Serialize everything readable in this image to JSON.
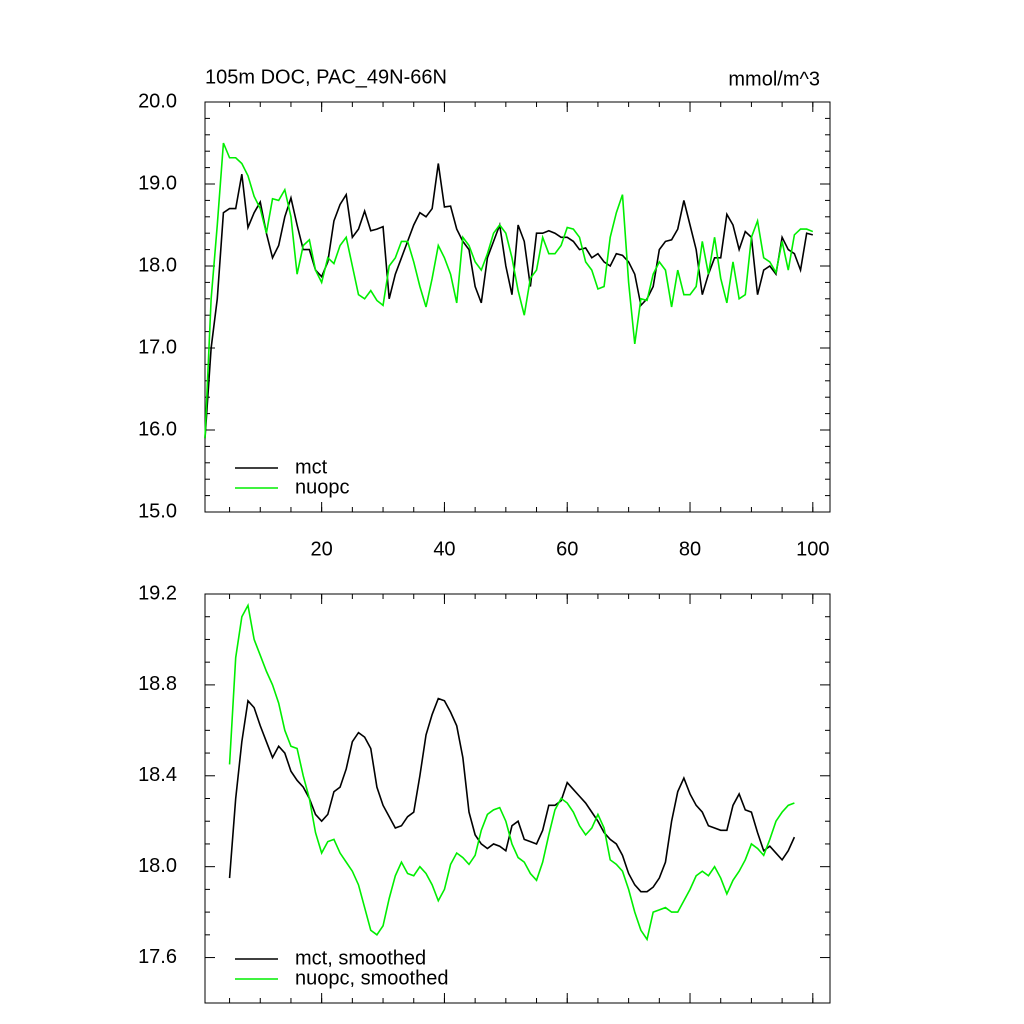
{
  "chart_data": [
    {
      "type": "line",
      "title": "105m DOC, PAC_49N-66N",
      "unit": "mmol/m^3",
      "x": [
        1,
        2,
        3,
        4,
        5,
        6,
        7,
        8,
        9,
        10,
        11,
        12,
        13,
        14,
        15,
        16,
        17,
        18,
        19,
        20,
        21,
        22,
        23,
        24,
        25,
        26,
        27,
        28,
        29,
        30,
        31,
        32,
        33,
        34,
        35,
        36,
        37,
        38,
        39,
        40,
        41,
        42,
        43,
        44,
        45,
        46,
        47,
        48,
        49,
        50,
        51,
        52,
        53,
        54,
        55,
        56,
        57,
        58,
        59,
        60,
        61,
        62,
        63,
        64,
        65,
        66,
        67,
        68,
        69,
        70,
        71,
        72,
        73,
        74,
        75,
        76,
        77,
        78,
        79,
        80,
        81,
        82,
        83,
        84,
        85,
        86,
        87,
        88,
        89,
        90,
        91,
        92,
        93,
        94,
        95,
        96,
        97,
        98,
        99,
        100
      ],
      "series": [
        {
          "name": "mct",
          "color": "#000000",
          "values": [
            15.9,
            17.0,
            17.6,
            18.65,
            18.7,
            18.7,
            19.12,
            18.47,
            18.65,
            18.78,
            18.4,
            18.1,
            18.25,
            18.6,
            18.83,
            18.5,
            18.2,
            18.2,
            17.95,
            17.87,
            18.05,
            18.55,
            18.75,
            18.87,
            18.35,
            18.45,
            18.67,
            18.43,
            18.45,
            18.48,
            17.6,
            17.9,
            18.1,
            18.3,
            18.5,
            18.65,
            18.6,
            18.7,
            19.25,
            18.72,
            18.73,
            18.45,
            18.3,
            18.2,
            17.75,
            17.55,
            18.1,
            18.3,
            18.5,
            18.0,
            17.65,
            18.5,
            18.3,
            17.75,
            18.4,
            18.4,
            18.43,
            18.4,
            18.35,
            18.35,
            18.3,
            18.2,
            18.22,
            18.1,
            18.15,
            18.05,
            18.0,
            18.15,
            18.13,
            18.05,
            17.9,
            17.52,
            17.6,
            17.75,
            18.2,
            18.3,
            18.32,
            18.45,
            18.8,
            18.5,
            18.2,
            17.65,
            17.9,
            18.1,
            18.1,
            18.63,
            18.5,
            18.2,
            18.42,
            18.35,
            17.65,
            17.95,
            18.0,
            17.9,
            18.35,
            18.2,
            18.15,
            17.95,
            18.4,
            18.38
          ]
        },
        {
          "name": "nuopc",
          "color": "#00ee00",
          "values": [
            15.9,
            17.6,
            18.5,
            19.5,
            19.32,
            19.32,
            19.25,
            19.1,
            18.85,
            18.7,
            18.4,
            18.82,
            18.8,
            18.93,
            18.6,
            17.9,
            18.25,
            18.32,
            17.95,
            17.8,
            18.1,
            18.03,
            18.25,
            18.35,
            18.0,
            17.65,
            17.6,
            17.7,
            17.58,
            17.52,
            18.0,
            18.1,
            18.3,
            18.3,
            18.05,
            17.75,
            17.5,
            17.85,
            18.25,
            18.1,
            17.9,
            17.55,
            18.35,
            18.25,
            18.05,
            17.95,
            18.15,
            18.4,
            18.5,
            18.4,
            18.1,
            17.7,
            17.4,
            17.85,
            17.95,
            18.35,
            18.15,
            18.15,
            18.25,
            18.47,
            18.45,
            18.35,
            18.05,
            17.95,
            17.72,
            17.75,
            18.35,
            18.65,
            18.87,
            17.8,
            17.05,
            17.6,
            17.58,
            17.9,
            18.05,
            17.95,
            17.5,
            17.95,
            17.65,
            17.65,
            17.75,
            18.3,
            17.9,
            18.35,
            17.85,
            17.55,
            18.05,
            17.6,
            17.65,
            18.35,
            18.55,
            18.1,
            18.05,
            17.92,
            18.3,
            17.95,
            18.38,
            18.45,
            18.45,
            18.42
          ]
        }
      ],
      "xlim": [
        1,
        102.8
      ],
      "ylim": [
        15,
        20
      ],
      "xticks": [
        20,
        40,
        60,
        80,
        100
      ],
      "yticks": [
        {
          "value": 15,
          "label": "15.0"
        },
        {
          "value": 16,
          "label": "16.0"
        },
        {
          "value": 17,
          "label": "17.0"
        },
        {
          "value": 18,
          "label": "18.0"
        },
        {
          "value": 19,
          "label": "19.0"
        },
        {
          "value": 20,
          "label": "20.0"
        }
      ],
      "show_xtick_labels": true,
      "legend": "lower left"
    },
    {
      "type": "line",
      "x": [
        5,
        6,
        7,
        8,
        9,
        10,
        11,
        12,
        13,
        14,
        15,
        16,
        17,
        18,
        19,
        20,
        21,
        22,
        23,
        24,
        25,
        26,
        27,
        28,
        29,
        30,
        31,
        32,
        33,
        34,
        35,
        36,
        37,
        38,
        39,
        40,
        41,
        42,
        43,
        44,
        45,
        46,
        47,
        48,
        49,
        50,
        51,
        52,
        53,
        54,
        55,
        56,
        57,
        58,
        59,
        60,
        61,
        62,
        63,
        64,
        65,
        66,
        67,
        68,
        69,
        70,
        71,
        72,
        73,
        74,
        75,
        76,
        77,
        78,
        79,
        80,
        81,
        82,
        83,
        84,
        85,
        86,
        87,
        88,
        89,
        90,
        91,
        92,
        93,
        94,
        95,
        96,
        97
      ],
      "series": [
        {
          "name": "mct, smoothed",
          "color": "#000000",
          "values": [
            17.95,
            18.3,
            18.55,
            18.73,
            18.7,
            18.62,
            18.55,
            18.48,
            18.53,
            18.5,
            18.42,
            18.38,
            18.35,
            18.3,
            18.23,
            18.2,
            18.23,
            18.33,
            18.35,
            18.43,
            18.55,
            18.59,
            18.57,
            18.52,
            18.35,
            18.27,
            18.22,
            18.17,
            18.18,
            18.22,
            18.24,
            18.4,
            18.58,
            18.67,
            18.74,
            18.73,
            18.68,
            18.62,
            18.48,
            18.24,
            18.14,
            18.1,
            18.08,
            18.1,
            18.09,
            18.07,
            18.18,
            18.2,
            18.12,
            18.11,
            18.1,
            18.16,
            18.27,
            18.27,
            18.29,
            18.37,
            18.34,
            18.31,
            18.28,
            18.24,
            18.2,
            18.15,
            18.12,
            18.1,
            18.05,
            17.97,
            17.92,
            17.89,
            17.89,
            17.91,
            17.95,
            18.02,
            18.2,
            18.33,
            18.39,
            18.32,
            18.27,
            18.24,
            18.18,
            18.17,
            18.16,
            18.16,
            18.27,
            18.32,
            18.25,
            18.24,
            18.15,
            18.07,
            18.09,
            18.06,
            18.03,
            18.07,
            18.13
          ]
        },
        {
          "name": "nuopc, smoothed",
          "color": "#00ee00",
          "values": [
            18.45,
            18.92,
            19.1,
            19.15,
            19.0,
            18.93,
            18.86,
            18.8,
            18.72,
            18.6,
            18.53,
            18.52,
            18.4,
            18.3,
            18.15,
            18.06,
            18.11,
            18.12,
            18.06,
            18.02,
            17.98,
            17.92,
            17.82,
            17.72,
            17.7,
            17.74,
            17.86,
            17.96,
            18.02,
            17.97,
            17.96,
            18.0,
            17.97,
            17.92,
            17.85,
            17.9,
            18.01,
            18.06,
            18.04,
            18.01,
            18.05,
            18.16,
            18.23,
            18.25,
            18.26,
            18.2,
            18.1,
            18.04,
            18.02,
            17.97,
            17.94,
            18.02,
            18.14,
            18.25,
            18.3,
            18.28,
            18.24,
            18.18,
            18.14,
            18.17,
            18.23,
            18.17,
            18.03,
            18.01,
            17.98,
            17.9,
            17.8,
            17.72,
            17.68,
            17.8,
            17.81,
            17.82,
            17.8,
            17.8,
            17.85,
            17.9,
            17.96,
            17.98,
            17.96,
            18.0,
            17.95,
            17.88,
            17.94,
            17.98,
            18.03,
            18.1,
            18.08,
            18.05,
            18.12,
            18.2,
            18.24,
            18.27,
            18.28
          ]
        }
      ],
      "xlim": [
        1,
        102.8
      ],
      "ylim": [
        17.4,
        19.2
      ],
      "xticks": [
        20,
        40,
        60,
        80,
        100
      ],
      "yticks": [
        17.6,
        {
          "value": 18,
          "label": "18.0"
        },
        18.4,
        18.8,
        19.2
      ],
      "show_xtick_labels": false,
      "legend": "lower left"
    }
  ]
}
